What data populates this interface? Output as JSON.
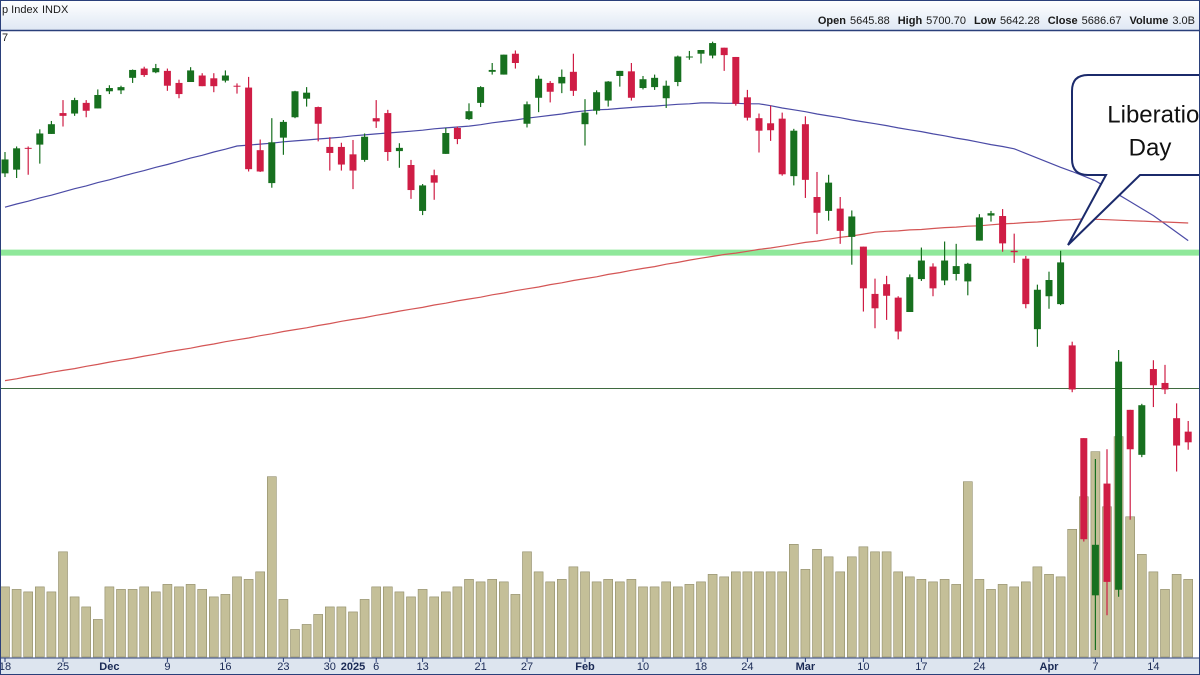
{
  "chart_data": {
    "type": "candlestick",
    "title": "p Index",
    "exchange": "INDX",
    "corner_text": "7",
    "stats": [
      {
        "label": "Open",
        "value": "5645.88"
      },
      {
        "label": "High",
        "value": "5700.70"
      },
      {
        "label": "Low",
        "value": "5642.28"
      },
      {
        "label": "Close",
        "value": "5686.67"
      },
      {
        "label": "Volume",
        "value": "3.0B"
      }
    ],
    "categories": [
      "18",
      null,
      null,
      null,
      null,
      "25",
      null,
      null,
      null,
      "Dec",
      null,
      null,
      null,
      null,
      "9",
      null,
      null,
      null,
      null,
      "16",
      null,
      null,
      null,
      null,
      "23",
      null,
      null,
      null,
      "30",
      null,
      "2025",
      null,
      "6",
      null,
      null,
      null,
      "13",
      null,
      null,
      null,
      null,
      "21",
      null,
      null,
      null,
      "27",
      null,
      null,
      null,
      null,
      "Feb",
      null,
      null,
      null,
      null,
      "10",
      null,
      null,
      null,
      null,
      "18",
      null,
      null,
      null,
      "24",
      null,
      null,
      null,
      null,
      "Mar",
      null,
      null,
      null,
      null,
      "10",
      null,
      null,
      null,
      null,
      "17",
      null,
      null,
      null,
      null,
      "24",
      null,
      null,
      null,
      null,
      null,
      "Apr",
      null,
      null,
      null,
      "7",
      null,
      null,
      null,
      null,
      "14",
      null,
      null,
      null
    ],
    "open": [
      5863,
      5871,
      5918,
      5925,
      5948,
      5993,
      5992,
      6015,
      6003,
      6040,
      6042,
      6069,
      6089,
      6081,
      6084,
      6058,
      6060,
      6074,
      6068,
      6063,
      6052,
      6048,
      5913,
      5842,
      5940,
      5984,
      6024,
      6006,
      5920,
      5920,
      5904,
      5892,
      5982,
      5993,
      5911,
      5881,
      5782,
      5859,
      5905,
      5961,
      5980,
      6015,
      6082,
      6076,
      6121,
      5970,
      6026,
      6058,
      6057,
      6082,
      5969,
      5998,
      6020,
      6073,
      6083,
      6047,
      6049,
      6025,
      6060,
      6115,
      6121,
      6117,
      6134,
      6114,
      6027,
      5982,
      5971,
      5981,
      5857,
      5969,
      5812,
      5782,
      5787,
      5726,
      5705,
      5603,
      5624,
      5595,
      5564,
      5635,
      5662,
      5632,
      5646,
      5630,
      5718,
      5772,
      5771,
      5696,
      5679,
      5527,
      5598,
      5581,
      5492,
      5292,
      4953,
      5194,
      4965,
      5353,
      5256,
      5441,
      5411,
      5335,
      5306
    ],
    "high": [
      5909,
      5921,
      5921,
      5958,
      5976,
      6021,
      6026,
      6021,
      6044,
      6053,
      6052,
      6087,
      6093,
      6099,
      6089,
      6065,
      6092,
      6079,
      6079,
      6085,
      6057,
      6071,
      5936,
      5982,
      5978,
      6041,
      6049,
      6007,
      5941,
      5929,
      5935,
      5949,
      6021,
      6000,
      5928,
      5892,
      5840,
      5871,
      5961,
      5964,
      6014,
      6051,
      6101,
      6119,
      6128,
      6018,
      6074,
      6062,
      6087,
      6121,
      6023,
      6042,
      6062,
      6084,
      6101,
      6073,
      6076,
      6063,
      6117,
      6127,
      6129,
      6147,
      6134,
      6114,
      6043,
      5992,
      6009,
      5994,
      5959,
      5986,
      5866,
      5860,
      5812,
      5783,
      5705,
      5636,
      5642,
      5598,
      5645,
      5703,
      5669,
      5716,
      5711,
      5670,
      5775,
      5782,
      5786,
      5733,
      5685,
      5623,
      5651,
      5696,
      5500,
      5292,
      5247,
      5268,
      5482,
      5353,
      5366,
      5460,
      5450,
      5367,
      5329
    ],
    "low": [
      5855,
      5853,
      5860,
      5884,
      5948,
      5964,
      5987,
      5984,
      6003,
      6034,
      6034,
      6058,
      6071,
      6079,
      6041,
      6025,
      6060,
      6051,
      6038,
      6059,
      6035,
      5867,
      5866,
      5832,
      5903,
      5982,
      6007,
      5932,
      5869,
      5869,
      5829,
      5888,
      5961,
      5890,
      5875,
      5808,
      5773,
      5806,
      5905,
      5926,
      5978,
      6006,
      6076,
      6076,
      6089,
      5962,
      5995,
      6016,
      6036,
      6030,
      5923,
      5990,
      6007,
      6050,
      6020,
      6044,
      6043,
      6004,
      6051,
      6108,
      6100,
      6111,
      6084,
      6009,
      5977,
      5908,
      5933,
      5858,
      5837,
      5810,
      5732,
      5761,
      5711,
      5666,
      5565,
      5529,
      5547,
      5505,
      5564,
      5631,
      5598,
      5622,
      5632,
      5600,
      5718,
      5759,
      5694,
      5670,
      5572,
      5489,
      5571,
      5579,
      5391,
      5069,
      4835,
      4910,
      4950,
      5116,
      5251,
      5359,
      5387,
      5220,
      5267
    ],
    "close": [
      5893,
      5917,
      5917,
      5949,
      5969,
      5987,
      6021,
      5998,
      6032,
      6047,
      6049,
      6086,
      6075,
      6090,
      6052,
      6034,
      6085,
      6051,
      6051,
      6074,
      6050,
      5872,
      5867,
      5930,
      5974,
      6040,
      6037,
      5970,
      5907,
      5882,
      5869,
      5942,
      5975,
      5909,
      5918,
      5827,
      5837,
      5843,
      5950,
      5937,
      5997,
      6049,
      6086,
      6119,
      6101,
      6012,
      6067,
      6039,
      6071,
      6041,
      5994,
      6038,
      6061,
      6084,
      6026,
      6066,
      6069,
      6052,
      6115,
      6115,
      6129,
      6144,
      6118,
      6013,
      5983,
      5955,
      5956,
      5861,
      5955,
      5849,
      5778,
      5843,
      5739,
      5770,
      5615,
      5572,
      5599,
      5522,
      5639,
      5675,
      5615,
      5675,
      5663,
      5668,
      5768,
      5777,
      5712,
      5693,
      5581,
      5612,
      5633,
      5671,
      5397,
      5074,
      5062,
      4982,
      5457,
      5268,
      5363,
      5406,
      5397,
      5276,
      5283
    ],
    "up_color": "#17701f",
    "down_color": "#cf1d45",
    "ylim": [
      4820,
      6170
    ],
    "volume": [
      2.8,
      2.7,
      2.6,
      2.8,
      2.6,
      4.2,
      2.4,
      2.0,
      1.5,
      2.8,
      2.7,
      2.7,
      2.8,
      2.6,
      2.9,
      2.8,
      2.9,
      2.7,
      2.4,
      2.5,
      3.2,
      3.1,
      3.4,
      7.2,
      2.3,
      1.1,
      1.3,
      1.7,
      2.0,
      2.0,
      1.8,
      2.3,
      2.8,
      2.8,
      2.6,
      2.4,
      2.7,
      2.4,
      2.6,
      2.8,
      3.1,
      3.0,
      3.1,
      3.0,
      2.5,
      4.2,
      3.4,
      3.0,
      3.1,
      3.6,
      3.4,
      3.0,
      3.1,
      3.0,
      3.1,
      2.8,
      2.8,
      3.0,
      2.8,
      2.9,
      3.0,
      3.3,
      3.2,
      3.4,
      3.4,
      3.4,
      3.4,
      3.4,
      4.5,
      3.5,
      4.3,
      4.0,
      3.4,
      4.0,
      4.4,
      4.2,
      4.2,
      3.4,
      3.2,
      3.1,
      3.0,
      3.1,
      2.9,
      7.0,
      3.1,
      2.7,
      2.9,
      2.8,
      3.0,
      3.6,
      3.3,
      3.2,
      5.1,
      6.4,
      8.2,
      6.0,
      8.8,
      5.6,
      4.1,
      3.4,
      2.7,
      3.3,
      3.1
    ],
    "volume_color": "#c4bf98",
    "volume_ylim": [
      0,
      25
    ],
    "ma_lines": [
      {
        "color": "#4b4ba6",
        "values": [
          5790,
          5797,
          5803,
          5810,
          5816,
          5823,
          5830,
          5836,
          5843,
          5849,
          5856,
          5863,
          5869,
          5876,
          5882,
          5889,
          5896,
          5902,
          5909,
          5915,
          5922,
          5924,
          5926,
          5928,
          5931,
          5933,
          5935,
          5937,
          5939,
          5941,
          5944,
          5946,
          5948,
          5950,
          5952,
          5954,
          5956,
          5959,
          5961,
          5963,
          5965,
          5968,
          5972,
          5975,
          5978,
          5982,
          5985,
          5988,
          5991,
          5995,
          5998,
          6000,
          6001,
          6003,
          6005,
          6007,
          6008,
          6010,
          6012,
          6013,
          6015,
          6015,
          6014,
          6014,
          6013,
          6013,
          6009,
          6004,
          6000,
          5996,
          5991,
          5987,
          5983,
          5978,
          5974,
          5970,
          5966,
          5961,
          5957,
          5953,
          5948,
          5944,
          5939,
          5935,
          5930,
          5925,
          5921,
          5916,
          5906,
          5896,
          5886,
          5876,
          5867,
          5857,
          5847,
          5832,
          5817,
          5802,
          5787,
          5772,
          5754,
          5736,
          5718
        ]
      },
      {
        "color": "#d45555",
        "values": [
          5416,
          5420,
          5425,
          5429,
          5434,
          5438,
          5442,
          5447,
          5451,
          5456,
          5460,
          5464,
          5469,
          5473,
          5478,
          5482,
          5486,
          5491,
          5495,
          5500,
          5504,
          5508,
          5513,
          5517,
          5522,
          5526,
          5530,
          5535,
          5539,
          5544,
          5548,
          5552,
          5557,
          5561,
          5566,
          5570,
          5574,
          5579,
          5583,
          5588,
          5592,
          5596,
          5601,
          5605,
          5610,
          5614,
          5618,
          5623,
          5627,
          5632,
          5636,
          5640,
          5645,
          5649,
          5654,
          5658,
          5662,
          5667,
          5671,
          5676,
          5680,
          5684,
          5688,
          5691,
          5695,
          5699,
          5702,
          5706,
          5710,
          5714,
          5717,
          5721,
          5725,
          5728,
          5732,
          5736,
          5738,
          5739,
          5741,
          5742,
          5744,
          5746,
          5747,
          5749,
          5750,
          5752,
          5754,
          5755,
          5757,
          5758,
          5760,
          5762,
          5763,
          5765,
          5764,
          5763,
          5762,
          5761,
          5760,
          5759,
          5758,
          5757,
          5756
        ]
      }
    ],
    "hlines": [
      {
        "value": 5692,
        "color": "#8fe89a"
      },
      {
        "value": 5399,
        "color": "#3f6a3f"
      }
    ],
    "annotation": {
      "lines": [
        "Liberation",
        "Day"
      ]
    }
  }
}
